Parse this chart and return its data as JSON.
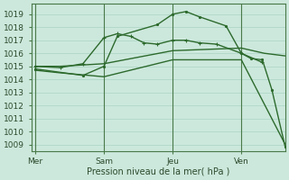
{
  "background_color": "#cce8dc",
  "grid_color": "#aad4c4",
  "line_color": "#2d6a2d",
  "vline_color": "#4a7a4a",
  "title": "Pression niveau de la mer( hPa )",
  "yticks": [
    1009,
    1010,
    1011,
    1012,
    1013,
    1014,
    1015,
    1016,
    1017,
    1018,
    1019
  ],
  "ylim": [
    1008.5,
    1019.8
  ],
  "xtick_labels": [
    "Mer",
    "Sam",
    "Jeu",
    "Ven"
  ],
  "xtick_positions": [
    0,
    36,
    72,
    108
  ],
  "xlim": [
    -2,
    131
  ],
  "vline_positions": [
    0,
    36,
    72,
    108
  ],
  "series": [
    {
      "x": [
        0,
        13,
        36,
        72,
        108,
        131
      ],
      "y": [
        1014.7,
        1014.5,
        1014.2,
        1015.5,
        1015.5,
        1009.0
      ],
      "marker": null,
      "linestyle": "-",
      "linewidth": 1.0
    },
    {
      "x": [
        0,
        13,
        36,
        72,
        108,
        120,
        131
      ],
      "y": [
        1015.0,
        1015.0,
        1015.2,
        1016.2,
        1016.4,
        1016.0,
        1015.8
      ],
      "marker": null,
      "linestyle": "-",
      "linewidth": 1.0
    },
    {
      "x": [
        0,
        13,
        25,
        36,
        43,
        50,
        57,
        64,
        72,
        79,
        86,
        95,
        108,
        119
      ],
      "y": [
        1015.0,
        1014.9,
        1015.2,
        1017.2,
        1017.5,
        1017.3,
        1016.8,
        1016.7,
        1017.0,
        1017.0,
        1016.8,
        1016.7,
        1016.0,
        1015.3
      ],
      "marker": "+",
      "linestyle": "-",
      "linewidth": 1.0
    },
    {
      "x": [
        0,
        25,
        36,
        43,
        64,
        72,
        79,
        86,
        100,
        108,
        113,
        119,
        124,
        131
      ],
      "y": [
        1014.8,
        1014.3,
        1015.0,
        1017.3,
        1018.2,
        1019.0,
        1019.2,
        1018.8,
        1018.1,
        1016.0,
        1015.6,
        1015.5,
        1013.2,
        1008.8
      ],
      "marker": ".",
      "linestyle": "-",
      "linewidth": 1.0
    }
  ]
}
